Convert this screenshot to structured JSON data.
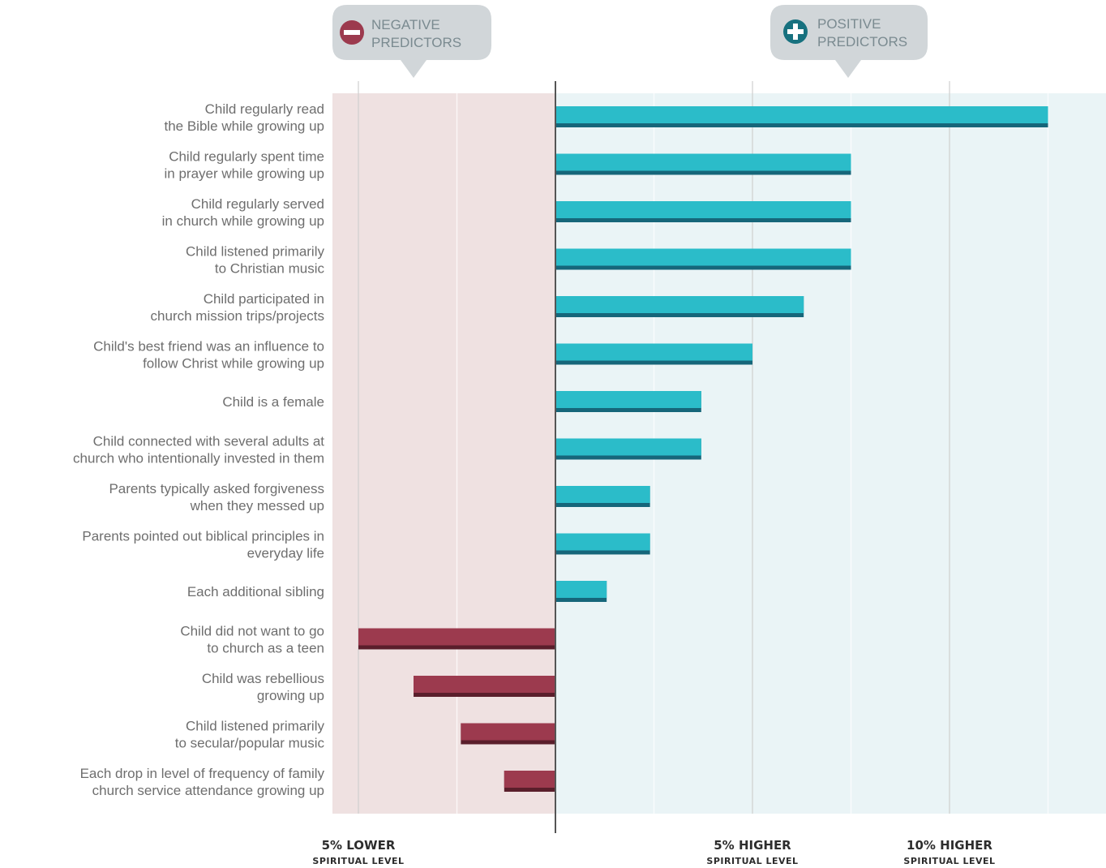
{
  "colors": {
    "negative_panel": "#efe1e1",
    "positive_panel": "#eaf4f6",
    "positive_bar": "#2bbcc9",
    "positive_bar_shadow": "#16667a",
    "negative_bar": "#9c3a4e",
    "negative_bar_shadow": "#5a1e2b",
    "badge": "#d1d6d9",
    "negative_icon": "#9c3a4e",
    "positive_icon": "#17717f",
    "gridline": "#cfcfcf",
    "axis": "#555555"
  },
  "badges": {
    "negative": {
      "line1": "NEGATIVE",
      "line2": "PREDICTORS",
      "icon": "minus-circle-icon"
    },
    "positive": {
      "line1": "POSITIVE",
      "line2": "PREDICTORS",
      "icon": "plus-circle-icon"
    }
  },
  "chart_data": {
    "type": "bar",
    "orientation": "horizontal",
    "xlim": [
      -5.5,
      14
    ],
    "grid": true,
    "x_ticks": [
      {
        "value": -5,
        "main": "5% LOWER",
        "sub": "SPIRITUAL LEVEL"
      },
      {
        "value": 5,
        "main": "5% HIGHER",
        "sub": "SPIRITUAL LEVEL"
      },
      {
        "value": 10,
        "main": "10% HIGHER",
        "sub": "SPIRITUAL LEVEL"
      }
    ],
    "categories": [
      [
        "Child regularly read",
        "the Bible while growing up"
      ],
      [
        "Child regularly spent time",
        "in prayer while growing up"
      ],
      [
        "Child regularly served",
        "in church while growing up"
      ],
      [
        "Child listened primarily",
        "to Christian music"
      ],
      [
        "Child participated in",
        "church mission trips/projects"
      ],
      [
        "Child's best friend was an influence to",
        "follow Christ while growing up"
      ],
      [
        "Child is a female"
      ],
      [
        "Child connected with several adults at",
        "church who intentionally invested in them"
      ],
      [
        "Parents typically asked forgiveness",
        "when they messed up"
      ],
      [
        "Parents pointed out biblical principles in",
        "everyday life"
      ],
      [
        "Each additional sibling"
      ],
      [
        "Child did not want to go",
        "to church as a teen"
      ],
      [
        "Child was rebellious",
        "growing up"
      ],
      [
        "Child listened primarily",
        "to secular/popular music"
      ],
      [
        "Each drop in level of frequency of family",
        "church service attendance growing up"
      ]
    ],
    "values": [
      12.5,
      7.5,
      7.5,
      7.5,
      6.3,
      5.0,
      3.7,
      3.7,
      2.4,
      2.4,
      1.3,
      -5.0,
      -3.6,
      -2.4,
      -1.3
    ]
  }
}
